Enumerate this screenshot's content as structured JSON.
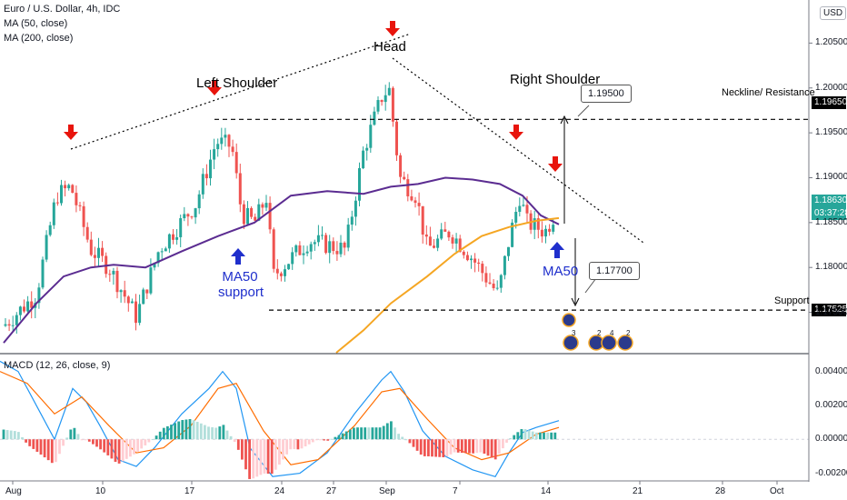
{
  "header": {
    "symbol_line": "Euro / U.S. Dollar, 4h, IDC",
    "ma50_line": "MA (50, close)",
    "ma200_line": "MA (200, close)",
    "currency_badge": "USD",
    "macd_line": "MACD (12, 26, close, 9)"
  },
  "colors": {
    "candle_up": "#26a69a",
    "candle_down": "#ef5350",
    "ma50": "#5b2c91",
    "ma200": "#f5a623",
    "macd": "#2196f3",
    "signal": "#ff6d00",
    "arrow_red": "#e8140c",
    "arrow_blue": "#1f2fcc"
  },
  "annotations": {
    "head": "Head",
    "left_shoulder": "Left Shoulder",
    "right_shoulder": "Right Shoulder",
    "neckline": "Neckline/ Resistance",
    "support": "Support",
    "ma50_support_1": "MA50",
    "ma50_support_2": "support",
    "ma50_right": "MA50",
    "callout_up": "1.19500",
    "callout_down": "1.17700"
  },
  "price_labels": {
    "neckline": "1.19650",
    "current": "1.18630",
    "countdown": "03:37:28",
    "support": "1.17525"
  },
  "event_badges": [
    "3",
    "2",
    "4",
    "2"
  ],
  "chart_data": {
    "type": "candlestick",
    "price_axis": {
      "ticks": [
        "1.20500",
        "1.20000",
        "1.19500",
        "1.19000",
        "1.18500",
        "1.18000",
        "1.17500"
      ],
      "range": [
        1.1705,
        1.2098
      ]
    },
    "time_axis": {
      "labels": [
        "Aug",
        "10",
        "17",
        "24",
        "27",
        "Sep",
        "7",
        "14",
        "21",
        "28",
        "Oct"
      ]
    },
    "levels": {
      "neckline": 1.1965,
      "support": 1.17525,
      "current": 1.1863
    },
    "ohlc_samples": [
      {
        "t": "Aug 3",
        "close": 1.175
      },
      {
        "t": "Aug 6",
        "close": 1.188
      },
      {
        "t": "Aug 12",
        "close": 1.174
      },
      {
        "t": "Aug 18",
        "close": 1.194
      },
      {
        "t": "Aug 21",
        "close": 1.179
      },
      {
        "t": "Sep 1",
        "close": 1.2
      },
      {
        "t": "Sep 9",
        "close": 1.177
      },
      {
        "t": "Sep 11",
        "close": 1.188
      },
      {
        "t": "Sep 15",
        "close": 1.1863
      }
    ],
    "ma50_series": [
      {
        "t": "Aug 3",
        "v": 1.172
      },
      {
        "t": "Aug 10",
        "v": 1.18
      },
      {
        "t": "Aug 17",
        "v": 1.181
      },
      {
        "t": "Aug 24",
        "v": 1.185
      },
      {
        "t": "Aug 31",
        "v": 1.189
      },
      {
        "t": "Sep 4",
        "v": 1.188
      },
      {
        "t": "Sep 7",
        "v": 1.188
      },
      {
        "t": "Sep 11",
        "v": 1.186
      },
      {
        "t": "Sep 15",
        "v": 1.1848
      }
    ],
    "ma200_series": [
      {
        "t": "Aug 28",
        "v": 1.1705
      },
      {
        "t": "Sep 4",
        "v": 1.179
      },
      {
        "t": "Sep 9",
        "v": 1.183
      },
      {
        "t": "Sep 15",
        "v": 1.1854
      }
    ],
    "macd": {
      "ticks": [
        "0.00400",
        "0.00200",
        "0.00000",
        "-0.00200"
      ],
      "range": [
        -0.0024,
        0.005
      ]
    }
  }
}
